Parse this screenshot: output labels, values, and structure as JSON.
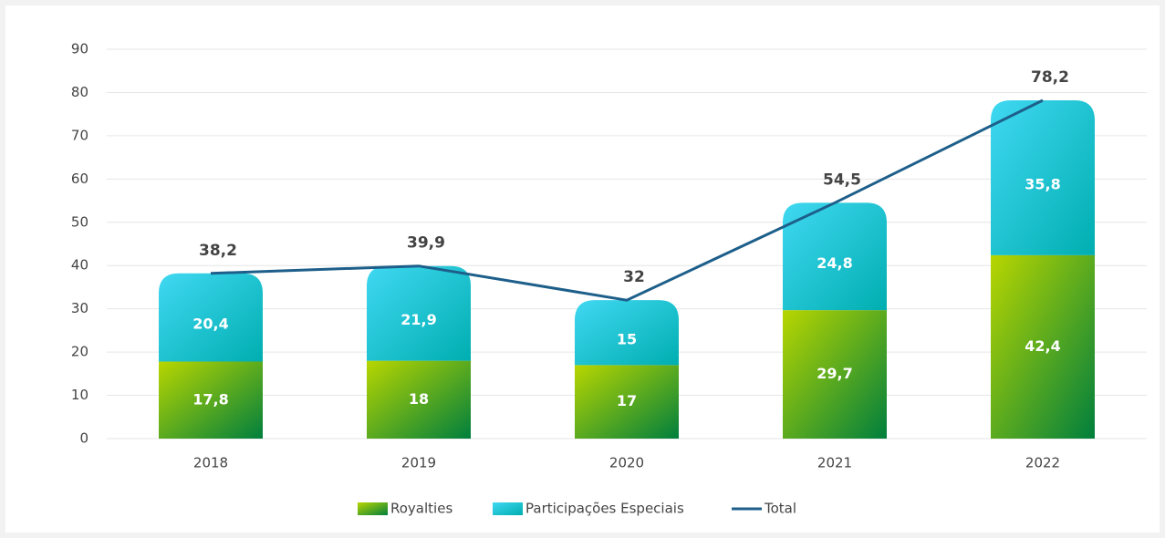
{
  "chart_data": {
    "type": "stacked-bar-line",
    "categories": [
      "2018",
      "2019",
      "2020",
      "2021",
      "2022"
    ],
    "series": [
      {
        "name": "Royalties",
        "type": "bar",
        "color": [
          "#b8d600",
          "#007f3d"
        ],
        "values": [
          17.8,
          18,
          17,
          29.7,
          42.4
        ],
        "value_labels": [
          "17,8",
          "18",
          "17",
          "29,7",
          "42,4"
        ]
      },
      {
        "name": "Participações Especiais",
        "type": "bar",
        "color": [
          "#00aeb0",
          "#40d8f2"
        ],
        "values": [
          20.4,
          21.9,
          15,
          24.8,
          35.8
        ],
        "value_labels": [
          "20,4",
          "21,9",
          "15",
          "24,8",
          "35,8"
        ]
      },
      {
        "name": "Total",
        "type": "line",
        "color": "#1d5f8a",
        "values": [
          38.2,
          39.9,
          32,
          54.5,
          78.2
        ],
        "value_labels": [
          "38,2",
          "39,9",
          "32",
          "54,5",
          "78,2"
        ]
      }
    ],
    "ylim": [
      0,
      90
    ],
    "yticks": [
      0,
      10,
      20,
      30,
      40,
      50,
      60,
      70,
      80,
      90
    ],
    "grid": true,
    "legend": "bottom"
  }
}
